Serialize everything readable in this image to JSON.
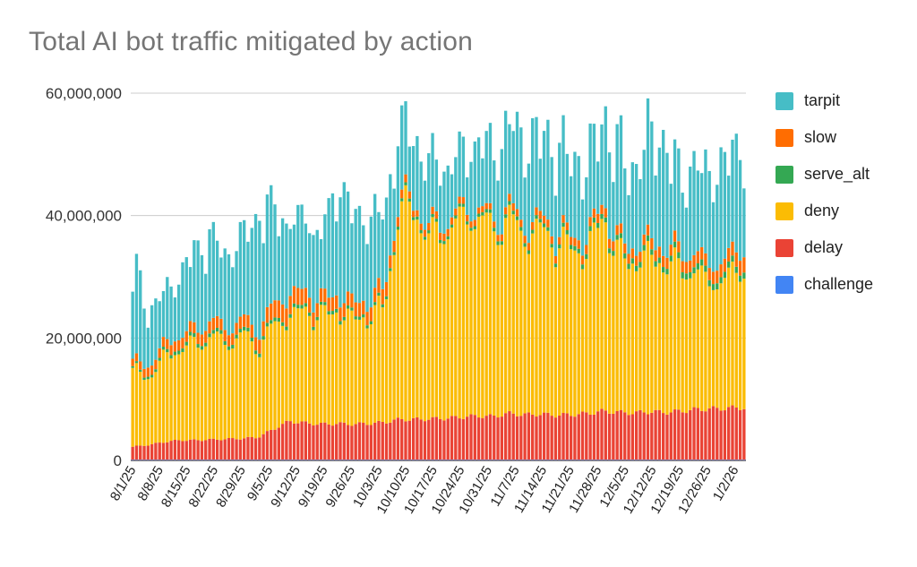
{
  "chart_data": {
    "type": "bar",
    "stacked": true,
    "title": "Total AI bot traffic mitigated by action",
    "xlabel": "",
    "ylabel": "",
    "ylim": [
      0,
      60000000
    ],
    "yticks": [
      0,
      20000000,
      40000000,
      60000000
    ],
    "ytick_labels": [
      "0",
      "20,000,000",
      "40,000,000",
      "60,000,000"
    ],
    "grid": true,
    "legend_position": "right",
    "xtick_labels": [
      "8/1/25",
      "8/8/25",
      "8/15/25",
      "8/22/25",
      "8/29/25",
      "9/5/25",
      "9/12/25",
      "9/19/25",
      "9/26/25",
      "10/3/25",
      "10/10/25",
      "10/17/25",
      "10/24/25",
      "10/31/25",
      "11/7/25",
      "11/14/25",
      "11/21/25",
      "11/28/25",
      "12/5/25",
      "12/12/25",
      "12/19/25",
      "12/26/25",
      "1/2/26"
    ],
    "legend": [
      {
        "name": "tarpit",
        "color": "#46bdc6"
      },
      {
        "name": "slow",
        "color": "#ff6d01"
      },
      {
        "name": "serve_alt",
        "color": "#34a853"
      },
      {
        "name": "deny",
        "color": "#fbbc04"
      },
      {
        "name": "delay",
        "color": "#ea4335"
      },
      {
        "name": "challenge",
        "color": "#4285f4"
      }
    ],
    "stack_order": [
      "challenge",
      "delay",
      "deny",
      "serve_alt",
      "slow",
      "tarpit"
    ],
    "totals_weekly": [
      31.5,
      24.0,
      27.0,
      30.0,
      34.0,
      36.0,
      33.0,
      36.0,
      39.0,
      41.0,
      38.0,
      40.0,
      36.0,
      45.0,
      40.0,
      39.0,
      40.0,
      54.5,
      53.5,
      48.0,
      49.0,
      50.0,
      53.0,
      50.0,
      55.0,
      52.0,
      53.0,
      51.0,
      49.0,
      48.0,
      56.0,
      50.0,
      47.0,
      53.0,
      51.0,
      46.0,
      48.0,
      46.0,
      49.0,
      52.0
    ],
    "series": [
      {
        "name": "challenge",
        "values_weekly": [
          0.1,
          0.1,
          0.1,
          0.1,
          0.1,
          0.1,
          0.1,
          0.1,
          0.1,
          0.1,
          0.1,
          0.1,
          0.1,
          0.1,
          0.1,
          0.1,
          0.1,
          0.1,
          0.1,
          0.1,
          0.1,
          0.1,
          0.1,
          0.1,
          0.1,
          0.1,
          0.1,
          0.1,
          0.1,
          0.1,
          0.1,
          0.1,
          0.1,
          0.1,
          0.1,
          0.1,
          0.1,
          0.1,
          0.1,
          0.1
        ]
      },
      {
        "name": "delay",
        "values_weekly": [
          2.2,
          2.5,
          3.0,
          3.3,
          3.3,
          3.4,
          3.5,
          3.6,
          3.8,
          5.2,
          6.5,
          6.2,
          6.0,
          6.1,
          6.0,
          6.1,
          6.3,
          6.8,
          6.8,
          6.9,
          7.0,
          7.2,
          7.4,
          7.3,
          7.8,
          7.6,
          7.7,
          7.5,
          7.6,
          7.8,
          8.2,
          8.0,
          7.9,
          8.1,
          8.0,
          8.2,
          8.5,
          8.6,
          8.7,
          8.8
        ]
      },
      {
        "name": "deny",
        "values_weekly": [
          12.5,
          11.5,
          14.0,
          15.5,
          16.0,
          17.5,
          16.0,
          17.5,
          15.0,
          17.5,
          17.5,
          19.0,
          18.0,
          19.0,
          17.5,
          18.0,
          19.0,
          35.0,
          35.5,
          30.0,
          32.0,
          33.0,
          34.0,
          31.0,
          33.0,
          30.0,
          31.0,
          29.0,
          28.0,
          27.0,
          33.0,
          26.0,
          25.5,
          26.0,
          25.0,
          24.0,
          23.0,
          21.0,
          22.0,
          24.0
        ]
      },
      {
        "name": "serve_alt",
        "values_weekly": [
          0.3,
          0.4,
          0.5,
          0.6,
          0.6,
          0.6,
          0.6,
          0.6,
          0.6,
          0.6,
          0.6,
          0.6,
          0.5,
          0.6,
          0.5,
          0.5,
          0.5,
          0.5,
          0.5,
          0.5,
          0.5,
          0.5,
          0.5,
          0.6,
          0.6,
          0.6,
          0.6,
          0.6,
          0.7,
          0.8,
          0.8,
          0.8,
          0.9,
          0.9,
          0.9,
          1.0,
          1.0,
          1.0,
          1.0,
          1.0
        ]
      },
      {
        "name": "slow",
        "values_weekly": [
          1.2,
          1.5,
          1.6,
          1.7,
          1.8,
          2.0,
          1.8,
          2.0,
          2.2,
          2.8,
          3.0,
          2.5,
          2.2,
          2.2,
          2.3,
          2.2,
          2.5,
          1.5,
          1.0,
          1.2,
          1.2,
          1.1,
          1.0,
          1.0,
          1.2,
          1.2,
          1.3,
          1.2,
          1.3,
          1.5,
          1.5,
          1.6,
          1.6,
          1.8,
          1.8,
          1.8,
          2.0,
          2.0,
          2.2,
          2.5
        ]
      },
      {
        "name": "tarpit",
        "values_weekly": [
          15.2,
          8.0,
          7.8,
          8.8,
          12.2,
          12.4,
          11.0,
          12.2,
          17.3,
          14.8,
          10.4,
          11.6,
          9.2,
          17.0,
          13.6,
          12.1,
          11.6,
          10.6,
          9.6,
          9.3,
          8.2,
          8.1,
          10.0,
          10.0,
          12.3,
          12.5,
          12.3,
          12.6,
          11.3,
          10.8,
          12.4,
          13.5,
          11.0,
          16.1,
          15.2,
          10.9,
          13.4,
          13.3,
          15.0,
          15.6
        ]
      }
    ]
  }
}
